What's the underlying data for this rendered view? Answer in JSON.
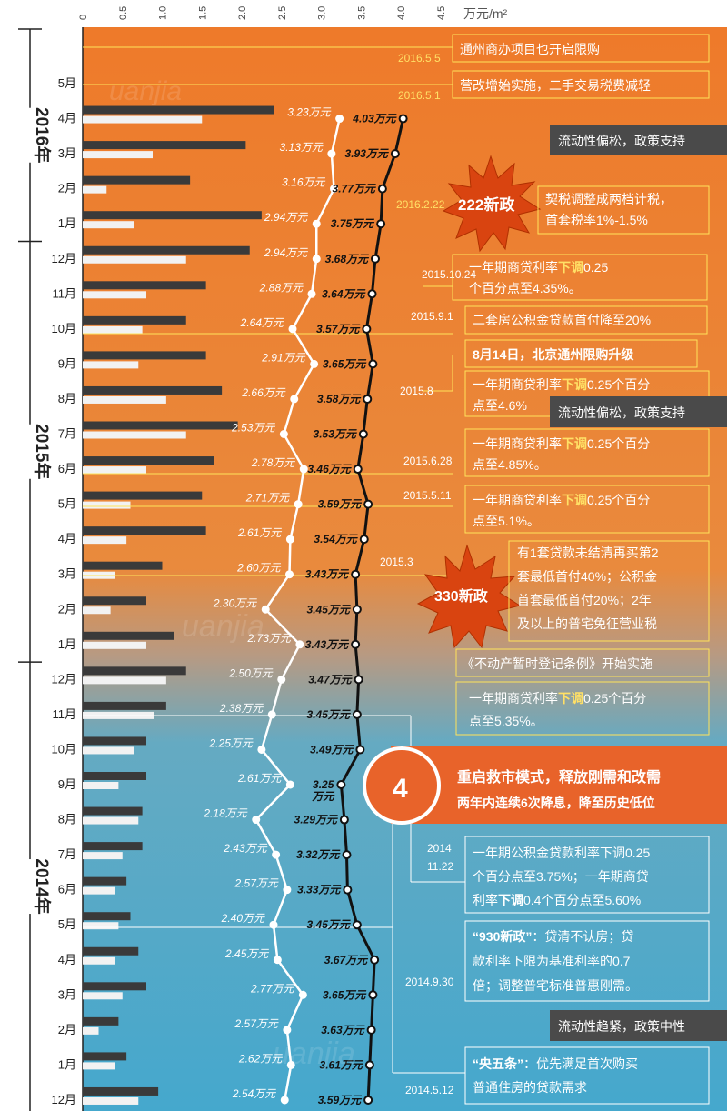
{
  "chart_data": {
    "type": "line",
    "title": "",
    "unit": "万元/m²",
    "xlim": [
      0,
      4.5
    ],
    "x_ticks": [
      "0",
      "0.5",
      "1.0",
      "1.5",
      "2.0",
      "2.5",
      "3.0",
      "3.5",
      "4.0",
      "4.5"
    ],
    "years": [
      {
        "label": "2016年",
        "from": "2016-05",
        "to": "2016-01"
      },
      {
        "label": "2015年",
        "from": "2015-12",
        "to": "2015-01"
      },
      {
        "label": "2014年",
        "from": "2014-12",
        "to": "2014-01"
      }
    ],
    "months": [
      {
        "m": "5月",
        "black": null,
        "white": null,
        "bar_dark": null,
        "bar_light": null
      },
      {
        "m": "4月",
        "black": 4.03,
        "black_label": "4.03万元",
        "white": 3.23,
        "white_label": "3.23万元",
        "bar_dark": 2.4,
        "bar_light": 1.5
      },
      {
        "m": "3月",
        "black": 3.93,
        "black_label": "3.93万元",
        "white": 3.13,
        "white_label": "3.13万元",
        "bar_dark": 2.05,
        "bar_light": 0.88
      },
      {
        "m": "2月",
        "black": 3.77,
        "black_label": "3.77万元",
        "white": 3.16,
        "white_label": "3.16万元",
        "bar_dark": 1.35,
        "bar_light": 0.3
      },
      {
        "m": "1月",
        "black": 3.75,
        "black_label": "3.75万元",
        "white": 2.94,
        "white_label": "2.94万元",
        "bar_dark": 2.25,
        "bar_light": 0.65
      },
      {
        "m": "12月",
        "black": 3.68,
        "black_label": "3.68万元",
        "white": 2.94,
        "white_label": "2.94万元",
        "bar_dark": 2.1,
        "bar_light": 1.3
      },
      {
        "m": "11月",
        "black": 3.64,
        "black_label": "3.64万元",
        "white": 2.88,
        "white_label": "2.88万元",
        "bar_dark": 1.55,
        "bar_light": 0.8
      },
      {
        "m": "10月",
        "black": 3.57,
        "black_label": "3.57万元",
        "white": 2.64,
        "white_label": "2.64万元",
        "bar_dark": 1.3,
        "bar_light": 0.75
      },
      {
        "m": "9月",
        "black": 3.65,
        "black_label": "3.65万元",
        "white": 2.91,
        "white_label": "2.91万元",
        "bar_dark": 1.55,
        "bar_light": 0.7
      },
      {
        "m": "8月",
        "black": 3.58,
        "black_label": "3.58万元",
        "white": 2.66,
        "white_label": "2.66万元",
        "bar_dark": 1.75,
        "bar_light": 1.05
      },
      {
        "m": "7月",
        "black": 3.53,
        "black_label": "3.53万元",
        "white": 2.53,
        "white_label": "2.53万元",
        "bar_dark": 1.95,
        "bar_light": 1.3
      },
      {
        "m": "6月",
        "black": 3.46,
        "black_label": "3.46万元",
        "white": 2.78,
        "white_label": "2.78万元",
        "bar_dark": 1.65,
        "bar_light": 0.8
      },
      {
        "m": "5月",
        "black": 3.59,
        "black_label": "3.59万元",
        "white": 2.71,
        "white_label": "2.71万元",
        "bar_dark": 1.5,
        "bar_light": 0.6
      },
      {
        "m": "4月",
        "black": 3.54,
        "black_label": "3.54万元",
        "white": 2.61,
        "white_label": "2.61万元",
        "bar_dark": 1.55,
        "bar_light": 0.55
      },
      {
        "m": "3月",
        "black": 3.43,
        "black_label": "3.43万元",
        "white": 2.6,
        "white_label": "2.60万元",
        "bar_dark": 1.0,
        "bar_light": 0.4
      },
      {
        "m": "2月",
        "black": 3.45,
        "black_label": "3.45万元",
        "white": 2.3,
        "white_label": "2.30万元",
        "bar_dark": 0.8,
        "bar_light": 0.35
      },
      {
        "m": "1月",
        "black": 3.43,
        "black_label": "3.43万元",
        "white": 2.73,
        "white_label": "2.73万元",
        "bar_dark": 1.15,
        "bar_light": 0.8
      },
      {
        "m": "12月",
        "black": 3.47,
        "black_label": "3.47万元",
        "white": 2.5,
        "white_label": "2.50万元",
        "bar_dark": 1.3,
        "bar_light": 1.05
      },
      {
        "m": "11月",
        "black": 3.45,
        "black_label": "3.45万元",
        "white": 2.38,
        "white_label": "2.38万元",
        "bar_dark": 1.05,
        "bar_light": 0.9
      },
      {
        "m": "10月",
        "black": 3.49,
        "black_label": "3.49万元",
        "white": 2.25,
        "white_label": "2.25万元",
        "bar_dark": 0.8,
        "bar_light": 0.65
      },
      {
        "m": "9月",
        "black": 3.25,
        "black_label": "3.25",
        "black_label2": "万元",
        "white": 2.61,
        "white_label": "2.61万元",
        "bar_dark": 0.8,
        "bar_light": 0.45
      },
      {
        "m": "8月",
        "black": 3.29,
        "black_label": "3.29万元",
        "white": 2.18,
        "white_label": "2.18万元",
        "bar_dark": 0.75,
        "bar_light": 0.7
      },
      {
        "m": "7月",
        "black": 3.32,
        "black_label": "3.32万元",
        "white": 2.43,
        "white_label": "2.43万元",
        "bar_dark": 0.75,
        "bar_light": 0.5
      },
      {
        "m": "6月",
        "black": 3.33,
        "black_label": "3.33万元",
        "white": 2.57,
        "white_label": "2.57万元",
        "bar_dark": 0.55,
        "bar_light": 0.4
      },
      {
        "m": "5月",
        "black": 3.45,
        "black_label": "3.45万元",
        "white": 2.4,
        "white_label": "2.40万元",
        "bar_dark": 0.6,
        "bar_light": 0.45
      },
      {
        "m": "4月",
        "black": 3.67,
        "black_label": "3.67万元",
        "white": 2.45,
        "white_label": "2.45万元",
        "bar_dark": 0.7,
        "bar_light": 0.4
      },
      {
        "m": "3月",
        "black": 3.65,
        "black_label": "3.65万元",
        "white": 2.77,
        "white_label": "2.77万元",
        "bar_dark": 0.8,
        "bar_light": 0.5
      },
      {
        "m": "2月",
        "black": 3.63,
        "black_label": "3.63万元",
        "white": 2.57,
        "white_label": "2.57万元",
        "bar_dark": 0.45,
        "bar_light": 0.2
      },
      {
        "m": "1月",
        "black": 3.61,
        "black_label": "3.61万元",
        "white": 2.62,
        "white_label": "2.62万元",
        "bar_dark": 0.55,
        "bar_light": 0.4
      },
      {
        "m": "12月",
        "black": 3.59,
        "black_label": "3.59万元",
        "white": 2.54,
        "white_label": "2.54万元",
        "bar_dark": 0.95,
        "bar_light": 0.7
      }
    ]
  },
  "events": {
    "e2016_5_5": {
      "date": "2016.5.5",
      "text": "通州商办项目也开启限购"
    },
    "e2016_5_1": {
      "date": "2016.5.1",
      "text": "营改增始实施，二手交易税费减轻"
    },
    "e2016_2_22": {
      "date": "2016.2.22",
      "burst": "222新政",
      "line1": "契税调整成两档计税，",
      "line2": "首套税率1%-1.5%"
    },
    "e2015_10_24": {
      "date": "2015.10.24",
      "line1_a": "一年期商贷利率",
      "line1_b": "下调",
      "line1_c": "0.25",
      "line2": "个百分点至4.35%。"
    },
    "e2015_9_1": {
      "date": "2015.9.1",
      "text": "二套房公积金贷款首付降至20%"
    },
    "e2015_8_14": {
      "text": "8月14日，北京通州限购升级"
    },
    "e2015_8": {
      "date": "2015.8",
      "line1_a": "一年期商贷利率",
      "line1_b": "下调",
      "line1_c": "0.25个百分",
      "line2": "点至4.6%"
    },
    "e2015_6_28": {
      "date": "2015.6.28",
      "line1_a": "一年期商贷利率",
      "line1_b": "下调",
      "line1_c": "0.25个百分",
      "line2": "点至4.85%。"
    },
    "e2015_5_11": {
      "date": "2015.5.11",
      "line1_a": "一年期商贷利率",
      "line1_b": "下调",
      "line1_c": "0.25个百分",
      "line2": "点至5.1%。"
    },
    "e2015_3": {
      "date": "2015.3",
      "burst": "330新政",
      "line1": "有1套贷款未结清再买第2",
      "line2": "套最低首付40%；公积金",
      "line3": "首套最低首付20%；2年",
      "line4": "及以上的普宅免征营业税"
    },
    "e_reg": {
      "text": "《不动产暂时登记条例》开始实施"
    },
    "e2014_11": {
      "line1_a": "一年期商贷利率",
      "line1_b": "下调",
      "line1_c": "0.25个百分",
      "line2": "点至5.35%。"
    },
    "banner": {
      "num": "4",
      "title": "重启救市模式，释放刚需和改需",
      "sub": "两年内连续6次降息，降至历史低位"
    },
    "e2014_11_22": {
      "date1": "2014",
      "date2": "11.22",
      "line1": "一年期公积金贷款利率下调0.25",
      "line2": "个百分点至3.75%；一年期商贷",
      "line3_a": "利率",
      "line3_b": "下调",
      "line3_c": "0.4个百分点至5.60%"
    },
    "e2014_9_30": {
      "date": "2014.9.30",
      "line1_a": "“930新政”",
      "line1_b": "：贷清不认房；贷",
      "line2": "款利率下限为基准利率的0.7",
      "line3": "倍；调整普宅标准普惠刚需。"
    },
    "e2014_5_12": {
      "date": "2014.5.12",
      "line1_a": "“央五条”",
      "line1_b": "：优先满足首次购买",
      "line2": "普通住房的贷款需求"
    }
  },
  "tags": {
    "t1": "流动性偏松，政策支持",
    "t2": "流动性偏松，政策支持",
    "t3": "流动性趋紧，政策中性"
  },
  "watermark": "uanjia"
}
